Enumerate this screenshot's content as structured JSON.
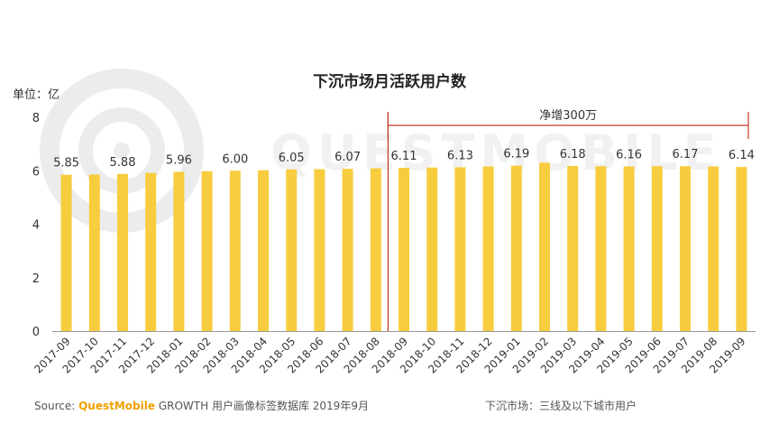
{
  "title": "下沉市场月活跃用户数",
  "unit_label": "单位：亿",
  "annotation": "净增300万",
  "source": {
    "label": "Source:",
    "brand": "QuestMobile",
    "product": "GROWTH 用户画像标签数据库",
    "date": "2019年9月"
  },
  "note": "下沉市场：三线及以下城市用户",
  "watermark": "QUESTMOBILE",
  "colors": {
    "bar": "#F7CD3F",
    "bracket": "#C0392B",
    "axis": "#999999"
  },
  "chart_data": {
    "type": "bar",
    "title": "下沉市场月活跃用户数",
    "ylabel": "单位：亿",
    "ylim": [
      0,
      8
    ],
    "yticks": [
      0,
      2,
      4,
      6,
      8
    ],
    "categories": [
      "2017-09",
      "2017-10",
      "2017-11",
      "2017-12",
      "2018-01",
      "2018-02",
      "2018-03",
      "2018-04",
      "2018-05",
      "2018-06",
      "2018-07",
      "2018-08",
      "2018-09",
      "2018-10",
      "2018-11",
      "2018-12",
      "2019-01",
      "2019-02",
      "2019-03",
      "2019-04",
      "2019-05",
      "2019-06",
      "2019-07",
      "2019-08",
      "2019-09"
    ],
    "values": [
      5.85,
      5.86,
      5.88,
      5.92,
      5.96,
      5.98,
      6.0,
      6.02,
      6.05,
      6.06,
      6.07,
      6.09,
      6.11,
      6.12,
      6.13,
      6.16,
      6.19,
      6.3,
      6.18,
      6.17,
      6.16,
      6.17,
      6.17,
      6.16,
      6.14
    ],
    "labels": [
      "5.85",
      "",
      "5.88",
      "",
      "5.96",
      "",
      "6.00",
      "",
      "6.05",
      "",
      "6.07",
      "",
      "6.11",
      "",
      "6.13",
      "",
      "6.19",
      "",
      "6.18",
      "",
      "6.16",
      "",
      "6.17",
      "",
      "6.14"
    ],
    "bracket": {
      "from": "2018-09",
      "to": "2019-09",
      "text": "净增300万"
    }
  }
}
